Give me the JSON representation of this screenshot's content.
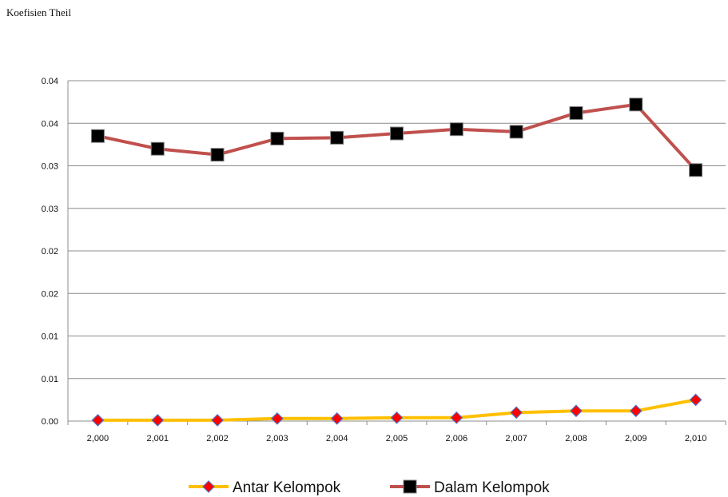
{
  "chart_data": {
    "type": "line",
    "title": "",
    "ylabel": "Koefisien Theil",
    "xlabel": "",
    "x": [
      "2,000",
      "2,001",
      "2,002",
      "2,003",
      "2,004",
      "2,005",
      "2,006",
      "2,007",
      "2,008",
      "2,009",
      "2,010"
    ],
    "y_ticks": [
      "0.00",
      "0.01",
      "0.01",
      "0.02",
      "0.02",
      "0.03",
      "0.03",
      "0.04",
      "0.04"
    ],
    "ylim": [
      0,
      0.04
    ],
    "grid": true,
    "legend": "bottom",
    "series": [
      {
        "name": "Antar Kelompok",
        "line_color": "#ffc000",
        "marker": "diamond",
        "marker_color": "#ff0000",
        "values": [
          0.0001,
          0.0001,
          0.0001,
          0.0003,
          0.0003,
          0.0004,
          0.0004,
          0.001,
          0.0012,
          0.0012,
          0.0025
        ]
      },
      {
        "name": "Dalam Kelompok",
        "line_color": "#c0504d",
        "marker": "square",
        "marker_color": "#000000",
        "values": [
          0.0335,
          0.032,
          0.0313,
          0.0332,
          0.0333,
          0.0338,
          0.0343,
          0.034,
          0.0362,
          0.0372,
          0.0295
        ]
      }
    ]
  }
}
